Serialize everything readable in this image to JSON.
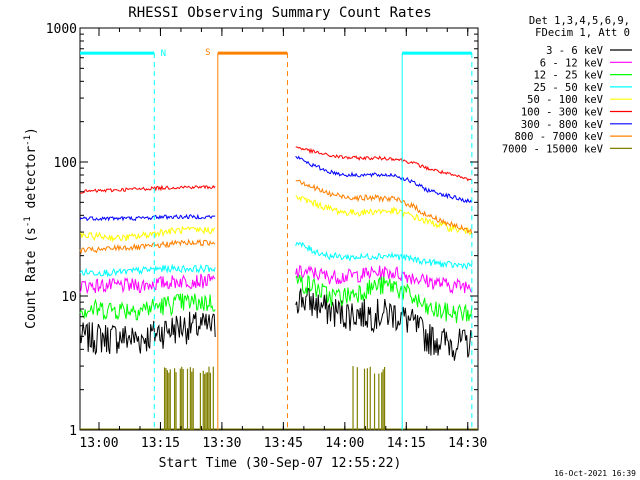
{
  "chart_data": {
    "type": "line",
    "title": "RHESSI Observing Summary Count Rates",
    "xlabel": "Start Time (30-Sep-07 12:55:22)",
    "ylabel_main": "Count Rate (s",
    "ylabel_sup1": "-1",
    "ylabel_mid": " detector",
    "ylabel_sup2": "-1",
    "ylabel_end": ")",
    "yscale": "log",
    "ylim": [
      1,
      1000
    ],
    "x_range_minutes": [
      "12:55:22",
      "14:32:30"
    ],
    "x_ticks": [
      "13:00",
      "13:15",
      "13:30",
      "13:45",
      "14:00",
      "14:15",
      "14:30"
    ],
    "y_ticks": [
      "1",
      "10",
      "100",
      "1000"
    ],
    "legend_header": [
      "Det 1,3,4,5,6,9,",
      "FDecim 1, Att 0"
    ],
    "legend_position": "top-right outside plot",
    "data_gap": [
      "13:29:00",
      "13:47:00"
    ],
    "series": [
      {
        "name": "3 - 6 keV",
        "color": "#000000",
        "before_gap": [
          5.0,
          5.0,
          5.0,
          4.8,
          5.5,
          6.0,
          6.0
        ],
        "after_gap": [
          10,
          9,
          8,
          7.5,
          7.5,
          7.5,
          7.5,
          6.5,
          5.0,
          4.5,
          4.5
        ]
      },
      {
        "name": "6 - 12 keV",
        "color": "#ff00ff",
        "before_gap": [
          12,
          12,
          12,
          12,
          12.5,
          13,
          13
        ],
        "after_gap": [
          15,
          15,
          14,
          14,
          14.5,
          15,
          15,
          14,
          13,
          12,
          12
        ]
      },
      {
        "name": "12 - 25 keV",
        "color": "#00ff00",
        "before_gap": [
          8,
          8,
          8,
          8,
          8.5,
          9,
          9
        ],
        "after_gap": [
          13,
          12,
          10,
          10,
          11,
          12,
          12,
          10,
          8,
          7.5,
          7.5
        ]
      },
      {
        "name": "25 - 50 keV",
        "color": "#00ffff",
        "before_gap": [
          15,
          15,
          15,
          15.5,
          16,
          16,
          16
        ],
        "after_gap": [
          25,
          22,
          20,
          19.5,
          19.5,
          20,
          20,
          19,
          18,
          17,
          17
        ]
      },
      {
        "name": "50 - 100 keV",
        "color": "#ffff00",
        "before_gap": [
          28,
          28,
          27,
          28,
          30,
          31,
          31
        ],
        "after_gap": [
          55,
          50,
          45,
          42,
          42,
          43,
          43,
          40,
          36,
          32,
          30
        ]
      },
      {
        "name": "100 - 300 keV",
        "color": "#ff0000",
        "before_gap": [
          60,
          61,
          62,
          63,
          64,
          65,
          65
        ],
        "after_gap": [
          130,
          120,
          112,
          108,
          107,
          107,
          106,
          100,
          90,
          80,
          73
        ]
      },
      {
        "name": "300 - 800 keV",
        "color": "#0000ff",
        "before_gap": [
          38,
          38,
          38,
          38,
          39,
          39,
          39
        ],
        "after_gap": [
          110,
          95,
          85,
          80,
          80,
          80,
          80,
          72,
          62,
          55,
          50
        ]
      },
      {
        "name": "800 - 7000 keV",
        "color": "#ff8000",
        "before_gap": [
          22,
          22,
          23,
          23,
          24,
          25,
          25
        ],
        "after_gap": [
          75,
          65,
          58,
          55,
          54,
          54,
          53,
          48,
          40,
          34,
          30
        ]
      },
      {
        "name": "7000 - 15000 keV",
        "color": "#808000",
        "before_gap": [
          1,
          1,
          1,
          1,
          1,
          1,
          1
        ],
        "after_gap": [
          1,
          1,
          1,
          1,
          1,
          1,
          1,
          1,
          1,
          1,
          1
        ]
      }
    ],
    "before_gap_times": [
      "12:55:22",
      "13:00",
      "13:05",
      "13:10",
      "13:15",
      "13:20",
      "13:28:30"
    ],
    "after_gap_times": [
      "13:48",
      "13:52",
      "13:56",
      "14:00",
      "14:04",
      "14:08",
      "14:12",
      "14:16",
      "14:20",
      "14:26",
      "14:31"
    ],
    "flag_bars": [
      {
        "label": "",
        "color": "#00ffff",
        "start": "12:55:22",
        "end": "13:13:30"
      },
      {
        "label": "N",
        "color": "#00ffff",
        "start": "13:13:30",
        "end": "13:13:30"
      },
      {
        "label": "S",
        "color": "#ff8000",
        "start": "13:29:00",
        "end": "13:46:00"
      },
      {
        "label": "",
        "color": "#00ffff",
        "start": "14:14:00",
        "end": "14:31:00"
      }
    ],
    "vertical_markers": [
      {
        "time": "13:13:30",
        "color": "#00ffff",
        "style": "dashed"
      },
      {
        "time": "13:29:00",
        "color": "#ff8000",
        "style": "solid"
      },
      {
        "time": "13:46:00",
        "color": "#ff8000",
        "style": "dashed"
      },
      {
        "time": "14:14:00",
        "color": "#00ffff",
        "style": "solid"
      },
      {
        "time": "14:31:00",
        "color": "#00ffff",
        "style": "dashed"
      }
    ],
    "flare_spikes_7000_keV": [
      [
        "13:16",
        "13:28"
      ],
      [
        "14:02",
        "14:10"
      ]
    ]
  },
  "footer": {
    "timestamp": "16-Oct-2021 16:39"
  },
  "flag_labels": {
    "n": "N",
    "s": "S"
  }
}
